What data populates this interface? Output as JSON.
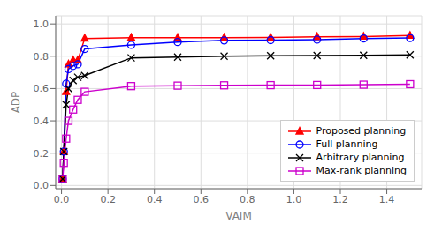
{
  "chart_data": {
    "type": "line",
    "title": "",
    "xlabel": "VAIM",
    "ylabel": "ADP",
    "x": [
      0.005,
      0.01,
      0.02,
      0.03,
      0.05,
      0.07,
      0.1,
      0.3,
      0.5,
      0.7,
      0.9,
      1.1,
      1.3,
      1.5
    ],
    "series": [
      {
        "name": "Proposed planning",
        "color": "#ff0000",
        "marker": "triangle",
        "values": [
          0.04,
          0.21,
          0.58,
          0.75,
          0.775,
          0.775,
          0.91,
          0.915,
          0.915,
          0.915,
          0.916,
          0.921,
          0.922,
          0.928
        ]
      },
      {
        "name": "Full planning",
        "color": "#0000ff",
        "marker": "circle-open",
        "values": [
          0.04,
          0.21,
          0.63,
          0.72,
          0.74,
          0.75,
          0.845,
          0.87,
          0.888,
          0.898,
          0.9,
          0.903,
          0.91,
          0.913
        ]
      },
      {
        "name": "Arbitrary planning",
        "color": "#000000",
        "marker": "x",
        "values": [
          0.04,
          0.21,
          0.5,
          0.6,
          0.65,
          0.67,
          0.68,
          0.79,
          0.795,
          0.8,
          0.803,
          0.804,
          0.806,
          0.808
        ]
      },
      {
        "name": "Max-rank planning",
        "color": "#cc00cc",
        "marker": "square-open",
        "values": [
          0.04,
          0.14,
          0.29,
          0.4,
          0.47,
          0.53,
          0.58,
          0.615,
          0.618,
          0.62,
          0.621,
          0.622,
          0.624,
          0.627
        ]
      }
    ],
    "xlim": [
      -0.025,
      1.55
    ],
    "ylim": [
      -0.02,
      1.05
    ],
    "xticks": [
      {
        "value": 0.0,
        "label": "0.0"
      },
      0.2,
      0.4,
      0.6,
      0.8,
      {
        "value": 1.0,
        "label": "1.0"
      },
      1.2,
      1.4
    ],
    "yticks": [
      {
        "value": 0.0,
        "label": "0.0"
      },
      0.2,
      0.4,
      0.6,
      0.8,
      {
        "value": 1.0,
        "label": "1.0"
      }
    ],
    "grid": true,
    "legend": "lower right"
  }
}
